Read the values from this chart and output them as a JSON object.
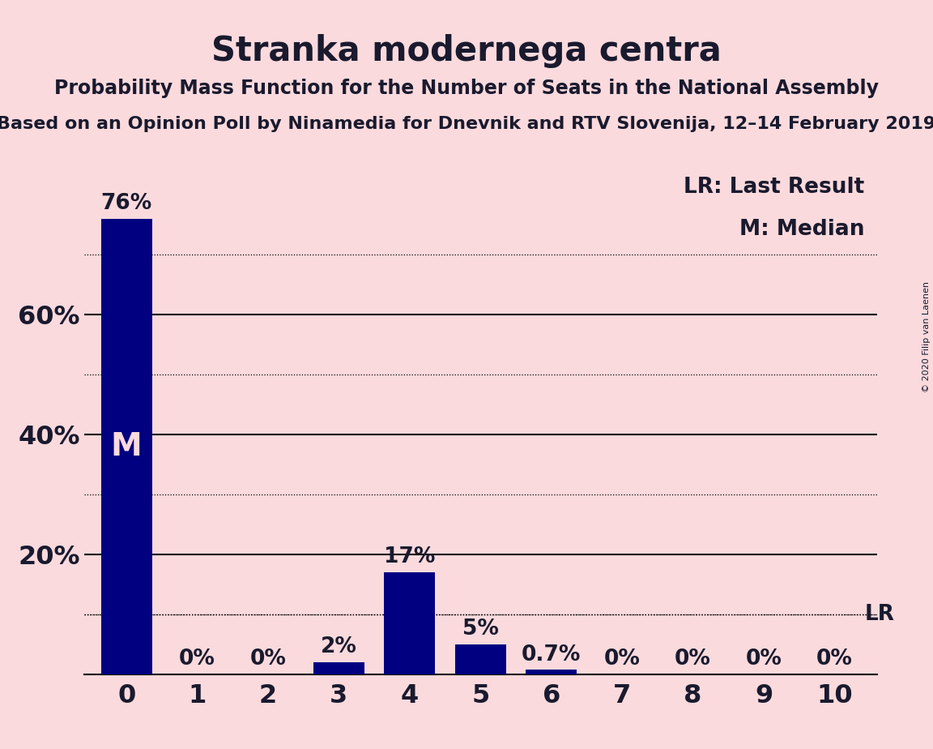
{
  "title": "Stranka modernega centra",
  "subtitle": "Probability Mass Function for the Number of Seats in the National Assembly",
  "source_line": "Based on an Opinion Poll by Ninamedia for Dnevnik and RTV Slovenija, 12–14 February 2019",
  "copyright": "© 2020 Filip van Laenen",
  "categories": [
    0,
    1,
    2,
    3,
    4,
    5,
    6,
    7,
    8,
    9,
    10
  ],
  "values": [
    76,
    0,
    0,
    2,
    17,
    5,
    0.7,
    0,
    0,
    0,
    0
  ],
  "bar_color": "#000080",
  "background_color": "#fadadd",
  "text_color": "#1a1a2e",
  "ylim": [
    0,
    85
  ],
  "solid_grid_lines": [
    20,
    40,
    60
  ],
  "dotted_grid_lines": [
    10,
    30,
    50,
    70
  ],
  "lr_value": 10,
  "lr_label": "LR",
  "median_seat": 0,
  "median_label": "M",
  "legend_lr": "LR: Last Result",
  "legend_m": "M: Median",
  "bar_labels": [
    "76%",
    "0%",
    "0%",
    "2%",
    "17%",
    "5%",
    "0.7%",
    "0%",
    "0%",
    "0%",
    "0%"
  ],
  "title_fontsize": 30,
  "subtitle_fontsize": 17,
  "source_fontsize": 16,
  "bar_label_fontsize": 19,
  "axis_label_fontsize": 23,
  "legend_fontsize": 19,
  "median_fontsize": 28,
  "copyright_fontsize": 8
}
